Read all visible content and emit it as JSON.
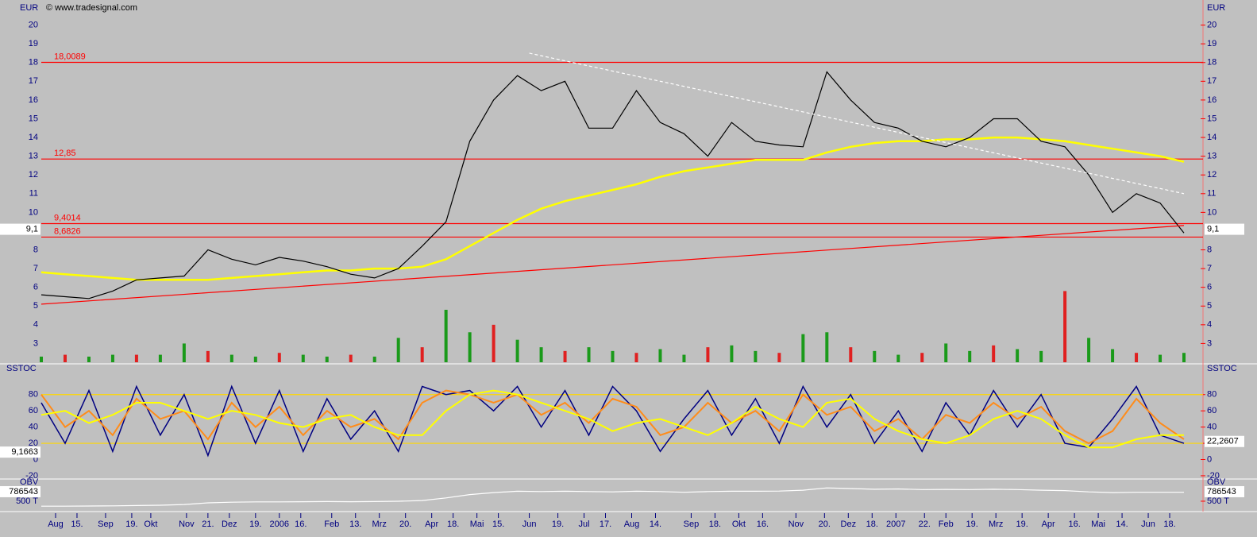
{
  "copyright": "© www.tradesignal.com",
  "x_axis": {
    "xlim": [
      0,
      488
    ],
    "xticks": [
      {
        "value": 6,
        "label": "Aug"
      },
      {
        "value": 15,
        "label": "15."
      },
      {
        "value": 27,
        "label": "Sep"
      },
      {
        "value": 38,
        "label": "19."
      },
      {
        "value": 46,
        "label": "Okt"
      },
      {
        "value": 61,
        "label": "Nov"
      },
      {
        "value": 70,
        "label": "21."
      },
      {
        "value": 79,
        "label": "Dez"
      },
      {
        "value": 90,
        "label": "19."
      },
      {
        "value": 100,
        "label": "2006"
      },
      {
        "value": 109,
        "label": "16."
      },
      {
        "value": 122,
        "label": "Feb"
      },
      {
        "value": 132,
        "label": "13."
      },
      {
        "value": 142,
        "label": "Mrz"
      },
      {
        "value": 153,
        "label": "20."
      },
      {
        "value": 164,
        "label": "Apr"
      },
      {
        "value": 173,
        "label": "18."
      },
      {
        "value": 183,
        "label": "Mai"
      },
      {
        "value": 192,
        "label": "15."
      },
      {
        "value": 205,
        "label": "Jun"
      },
      {
        "value": 217,
        "label": "19."
      },
      {
        "value": 228,
        "label": "Jul"
      },
      {
        "value": 237,
        "label": "17."
      },
      {
        "value": 248,
        "label": "Aug"
      },
      {
        "value": 258,
        "label": "14."
      },
      {
        "value": 273,
        "label": "Sep"
      },
      {
        "value": 283,
        "label": "18."
      },
      {
        "value": 293,
        "label": "Okt"
      },
      {
        "value": 303,
        "label": "16."
      },
      {
        "value": 317,
        "label": "Nov"
      },
      {
        "value": 329,
        "label": "20."
      },
      {
        "value": 339,
        "label": "Dez"
      },
      {
        "value": 349,
        "label": "18."
      },
      {
        "value": 359,
        "label": "2007"
      },
      {
        "value": 371,
        "label": "22."
      },
      {
        "value": 380,
        "label": "Feb"
      },
      {
        "value": 391,
        "label": "19."
      },
      {
        "value": 401,
        "label": "Mrz"
      },
      {
        "value": 412,
        "label": "19."
      },
      {
        "value": 423,
        "label": "Apr"
      },
      {
        "value": 434,
        "label": "16."
      },
      {
        "value": 444,
        "label": "Mai"
      },
      {
        "value": 454,
        "label": "14."
      },
      {
        "value": 465,
        "label": "Jun"
      },
      {
        "value": 474,
        "label": "18."
      }
    ]
  },
  "chart_data": [
    {
      "type": "line",
      "title": "EUR",
      "ylim": [
        2,
        21
      ],
      "yticks": [
        3,
        4,
        5,
        6,
        7,
        8,
        10,
        11,
        12,
        13,
        14,
        15,
        16,
        17,
        18,
        19,
        20
      ],
      "x": [
        0,
        10,
        20,
        30,
        40,
        50,
        60,
        70,
        80,
        90,
        100,
        110,
        120,
        130,
        140,
        150,
        160,
        170,
        180,
        190,
        200,
        210,
        220,
        230,
        240,
        250,
        260,
        270,
        280,
        290,
        300,
        310,
        320,
        330,
        340,
        350,
        360,
        370,
        380,
        390,
        400,
        410,
        420,
        430,
        440,
        450,
        460,
        470,
        480
      ],
      "series": [
        {
          "style": "bar",
          "color": "#1a9a1a",
          "values": [
            2.3,
            2.4,
            2.3,
            2.4,
            2.4,
            2.4,
            3.0,
            2.6,
            2.4,
            2.3,
            2.5,
            2.4,
            2.3,
            2.4,
            2.3,
            3.3,
            2.8,
            4.8,
            3.6,
            4.0,
            3.2,
            2.8,
            2.6,
            2.8,
            2.6,
            2.5,
            2.7,
            2.4,
            2.8,
            2.9,
            2.6,
            2.5,
            3.5,
            3.6,
            2.8,
            2.6,
            2.4,
            2.5,
            3.0,
            2.6,
            2.9,
            2.7,
            2.6,
            5.8,
            3.3,
            2.7,
            2.5,
            2.4,
            2.5
          ]
        },
        {
          "style": "line",
          "color": "#ffff00",
          "width": 2.5,
          "values": [
            6.8,
            6.7,
            6.6,
            6.5,
            6.4,
            6.4,
            6.4,
            6.4,
            6.5,
            6.6,
            6.7,
            6.8,
            6.9,
            6.9,
            7.0,
            7.0,
            7.1,
            7.5,
            8.2,
            8.9,
            9.6,
            10.2,
            10.6,
            10.9,
            11.2,
            11.5,
            11.9,
            12.2,
            12.4,
            12.6,
            12.8,
            12.8,
            12.8,
            13.2,
            13.5,
            13.7,
            13.8,
            13.8,
            13.9,
            13.9,
            14.0,
            14.0,
            13.9,
            13.8,
            13.6,
            13.4,
            13.2,
            13.0,
            12.7
          ]
        },
        {
          "style": "line",
          "color": "#000000",
          "width": 1.2,
          "values": [
            5.6,
            5.5,
            5.4,
            5.8,
            6.4,
            6.5,
            6.6,
            8.0,
            7.5,
            7.2,
            7.6,
            7.4,
            7.1,
            6.7,
            6.5,
            7.0,
            8.2,
            9.5,
            13.8,
            16.0,
            17.3,
            16.5,
            17.0,
            14.5,
            14.5,
            16.5,
            14.8,
            14.2,
            13.0,
            14.8,
            13.8,
            13.6,
            13.5,
            17.5,
            16.0,
            14.8,
            14.5,
            13.8,
            13.5,
            14.0,
            15.0,
            15.0,
            13.8,
            13.5,
            12.0,
            10.0,
            11.0,
            10.5,
            8.9
          ]
        }
      ],
      "levels_color": "#ff0000",
      "levels": [
        {
          "value": 18.0089,
          "label": "18,0089"
        },
        {
          "value": 12.85,
          "label": "12,85"
        },
        {
          "value": 9.4014,
          "label": "9,4014"
        },
        {
          "value": 8.6826,
          "label": "8,6826"
        }
      ],
      "trendlines": [
        {
          "x": [
            0,
            480
          ],
          "y": [
            5.1,
            9.3
          ],
          "color": "#ff0000",
          "dashed": false
        },
        {
          "x": [
            205,
            480
          ],
          "y": [
            18.5,
            11.0
          ],
          "color": "#ffffff",
          "dashed": true
        }
      ],
      "value_tags": [
        {
          "value": 9.1,
          "label": "9,1",
          "side": "both"
        }
      ]
    },
    {
      "type": "line",
      "title": "SSTOC",
      "ylim": [
        -23,
        114
      ],
      "yticks": [
        -20,
        0,
        20,
        40,
        60,
        80
      ],
      "x": [
        0,
        10,
        20,
        30,
        40,
        50,
        60,
        70,
        80,
        90,
        100,
        110,
        120,
        130,
        140,
        150,
        160,
        170,
        180,
        190,
        200,
        210,
        220,
        230,
        240,
        250,
        260,
        270,
        280,
        290,
        300,
        310,
        320,
        330,
        340,
        350,
        360,
        370,
        380,
        390,
        400,
        410,
        420,
        430,
        440,
        450,
        460,
        470,
        480
      ],
      "series": [
        {
          "style": "line",
          "color": "#000080",
          "width": 1.5,
          "values": [
            70,
            20,
            85,
            10,
            90,
            30,
            80,
            5,
            90,
            20,
            85,
            10,
            75,
            25,
            60,
            10,
            90,
            80,
            85,
            60,
            90,
            40,
            85,
            30,
            90,
            60,
            10,
            50,
            85,
            30,
            75,
            20,
            90,
            40,
            80,
            20,
            60,
            10,
            70,
            30,
            85,
            40,
            80,
            20,
            15,
            50,
            90,
            30,
            20
          ]
        },
        {
          "style": "line",
          "color": "#ff8c1a",
          "width": 2,
          "values": [
            80,
            40,
            60,
            30,
            75,
            50,
            60,
            25,
            70,
            40,
            65,
            30,
            60,
            40,
            50,
            25,
            70,
            85,
            80,
            70,
            80,
            55,
            70,
            45,
            75,
            65,
            30,
            40,
            70,
            45,
            60,
            35,
            80,
            55,
            65,
            35,
            50,
            25,
            55,
            45,
            70,
            50,
            65,
            35,
            20,
            35,
            75,
            45,
            25
          ]
        },
        {
          "style": "line",
          "color": "#ffff00",
          "width": 2,
          "values": [
            55,
            60,
            45,
            55,
            70,
            70,
            60,
            50,
            60,
            55,
            45,
            40,
            50,
            55,
            40,
            30,
            30,
            60,
            80,
            85,
            80,
            70,
            60,
            50,
            35,
            45,
            50,
            40,
            30,
            45,
            65,
            50,
            40,
            70,
            75,
            50,
            35,
            25,
            20,
            30,
            50,
            60,
            50,
            30,
            15,
            15,
            25,
            30,
            30
          ]
        }
      ],
      "levels_color": "#ffd700",
      "levels": [
        {
          "value": 80
        },
        {
          "value": 20
        }
      ],
      "value_tags": [
        {
          "value": 9.1663,
          "label": "9,1663",
          "side": "left"
        },
        {
          "value": 22.2607,
          "label": "22,2607",
          "side": "right"
        }
      ]
    },
    {
      "type": "line",
      "title": "OBV",
      "ylim": [
        260000,
        1120000
      ],
      "yticks": [
        {
          "value": 500000,
          "label": "500 T"
        }
      ],
      "x": [
        0,
        10,
        20,
        30,
        40,
        50,
        60,
        70,
        80,
        90,
        100,
        110,
        120,
        130,
        140,
        150,
        160,
        170,
        180,
        190,
        200,
        210,
        220,
        230,
        240,
        250,
        260,
        270,
        280,
        290,
        300,
        310,
        320,
        330,
        340,
        350,
        360,
        370,
        380,
        390,
        400,
        410,
        420,
        430,
        440,
        450,
        460,
        470,
        480
      ],
      "series": [
        {
          "style": "line",
          "color": "#ffffff",
          "width": 1.2,
          "values": [
            350000,
            350000,
            355000,
            360000,
            370000,
            380000,
            400000,
            450000,
            470000,
            480000,
            480000,
            485000,
            490000,
            485000,
            490000,
            500000,
            520000,
            600000,
            700000,
            760000,
            800000,
            790000,
            800000,
            790000,
            780000,
            800000,
            790000,
            770000,
            790000,
            800000,
            800000,
            805000,
            830000,
            900000,
            880000,
            860000,
            870000,
            850000,
            855000,
            850000,
            860000,
            850000,
            830000,
            820000,
            780000,
            760000,
            770000,
            770000,
            770000
          ]
        }
      ],
      "value_tags": [
        {
          "value": 786543,
          "side": "both"
        }
      ]
    }
  ]
}
